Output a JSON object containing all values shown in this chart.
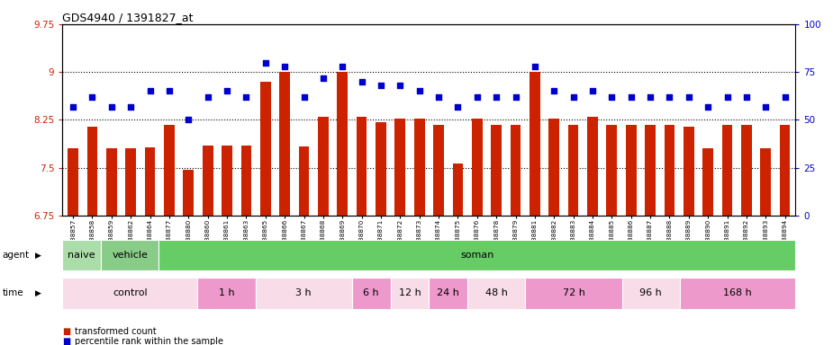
{
  "title": "GDS4940 / 1391827_at",
  "ylim": [
    6.75,
    9.75
  ],
  "yticks": [
    6.75,
    7.5,
    8.25,
    9.0,
    9.75
  ],
  "right_yticks": [
    0,
    25,
    50,
    75,
    100
  ],
  "right_ylim": [
    0,
    100
  ],
  "samples": [
    "GSM338857",
    "GSM338858",
    "GSM338859",
    "GSM338862",
    "GSM338864",
    "GSM338877",
    "GSM338880",
    "GSM338860",
    "GSM338861",
    "GSM338863",
    "GSM338865",
    "GSM338866",
    "GSM338867",
    "GSM338868",
    "GSM338869",
    "GSM338870",
    "GSM338871",
    "GSM338872",
    "GSM338873",
    "GSM338874",
    "GSM338875",
    "GSM338876",
    "GSM338878",
    "GSM338879",
    "GSM338881",
    "GSM338882",
    "GSM338883",
    "GSM338884",
    "GSM338885",
    "GSM338886",
    "GSM338887",
    "GSM338888",
    "GSM338889",
    "GSM338890",
    "GSM338891",
    "GSM338892",
    "GSM338893",
    "GSM338894"
  ],
  "bar_values": [
    7.8,
    8.15,
    7.8,
    7.8,
    7.82,
    8.17,
    7.47,
    7.85,
    7.85,
    7.85,
    8.85,
    9.0,
    7.83,
    8.3,
    9.0,
    8.3,
    8.22,
    8.27,
    8.27,
    8.17,
    7.57,
    8.27,
    8.17,
    8.17,
    9.0,
    8.27,
    8.17,
    8.3,
    8.17,
    8.17,
    8.17,
    8.17,
    8.15,
    7.8,
    8.17,
    8.17,
    7.8,
    8.17
  ],
  "percentile_values": [
    57,
    62,
    57,
    57,
    65,
    65,
    50,
    62,
    65,
    62,
    80,
    78,
    62,
    72,
    78,
    70,
    68,
    68,
    65,
    62,
    57,
    62,
    62,
    62,
    78,
    65,
    62,
    65,
    62,
    62,
    62,
    62,
    62,
    57,
    62,
    62,
    57,
    62
  ],
  "bar_color": "#cc2200",
  "dot_color": "#0000cc",
  "bar_width": 0.55,
  "agent_groups": [
    {
      "label": "naive",
      "start": 0,
      "end": 2,
      "color": "#aaddaa"
    },
    {
      "label": "vehicle",
      "start": 2,
      "end": 5,
      "color": "#88cc88"
    },
    {
      "label": "soman",
      "start": 5,
      "end": 38,
      "color": "#66cc66"
    }
  ],
  "time_groups": [
    {
      "label": "control",
      "start": 0,
      "end": 7,
      "color": "#f8dde8"
    },
    {
      "label": "1 h",
      "start": 7,
      "end": 10,
      "color": "#ee99cc"
    },
    {
      "label": "3 h",
      "start": 10,
      "end": 15,
      "color": "#f8dde8"
    },
    {
      "label": "6 h",
      "start": 15,
      "end": 17,
      "color": "#ee99cc"
    },
    {
      "label": "12 h",
      "start": 17,
      "end": 19,
      "color": "#f8dde8"
    },
    {
      "label": "24 h",
      "start": 19,
      "end": 21,
      "color": "#ee99cc"
    },
    {
      "label": "48 h",
      "start": 21,
      "end": 24,
      "color": "#f8dde8"
    },
    {
      "label": "72 h",
      "start": 24,
      "end": 29,
      "color": "#ee99cc"
    },
    {
      "label": "96 h",
      "start": 29,
      "end": 32,
      "color": "#f8dde8"
    },
    {
      "label": "168 h",
      "start": 32,
      "end": 38,
      "color": "#ee99cc"
    }
  ],
  "legend_bar_color": "#cc2200",
  "legend_dot_color": "#0000cc",
  "legend_bar_label": "transformed count",
  "legend_dot_label": "percentile rank within the sample"
}
